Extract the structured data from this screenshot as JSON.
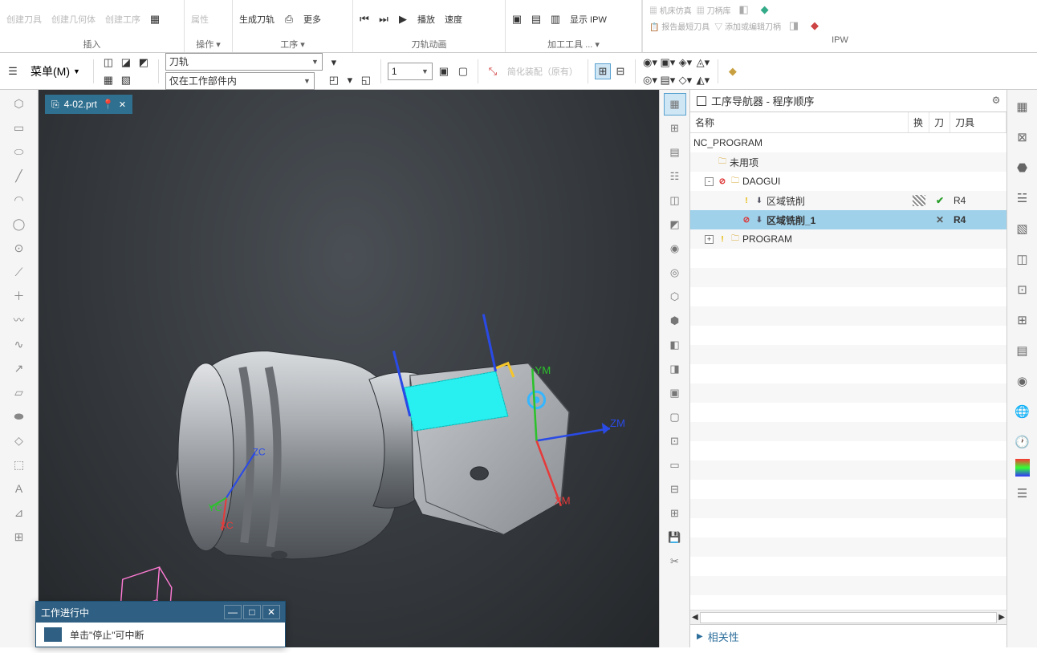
{
  "ribbon": {
    "groups": [
      {
        "label": "插入",
        "items": [
          "创建刀具",
          "创建几何体",
          "创建工序"
        ]
      },
      {
        "label": "操作 ▾",
        "items": [
          "属性"
        ]
      },
      {
        "label": "工序 ▾",
        "items": [
          "生成刀轨",
          "更多"
        ]
      },
      {
        "label": "刀轨动画",
        "items": [
          "播放",
          "速度"
        ]
      },
      {
        "label": "加工工具 ... ▾",
        "items": [
          "显示 IPW"
        ]
      },
      {
        "label": "IPW",
        "items": [
          "机床仿真",
          "刀柄库",
          "报告最短刀具",
          "添加或编辑刀柄"
        ]
      }
    ]
  },
  "toolbar": {
    "menu": "菜单(M)",
    "combo1": "刀轨",
    "combo2": "仅在工作部件内",
    "combo3": "1",
    "assy": "简化装配（原有）"
  },
  "fileTab": {
    "name": "4-02.prt",
    "pin": "📌"
  },
  "navigator": {
    "title": "工序导航器 - 程序顺序",
    "columns": {
      "name": "名称",
      "huan": "换",
      "dao": "刀",
      "tool": "刀具"
    },
    "rows": [
      {
        "level": 0,
        "exp": "",
        "icons": [],
        "label": "NC_PROGRAM",
        "h": "",
        "d": "",
        "t": ""
      },
      {
        "level": 1,
        "exp": "",
        "icons": [
          "folder"
        ],
        "label": "未用项",
        "h": "",
        "d": "",
        "t": ""
      },
      {
        "level": 1,
        "exp": "-",
        "icons": [
          "forbid",
          "folder"
        ],
        "label": "DAOGUI",
        "h": "",
        "d": "",
        "t": ""
      },
      {
        "level": 3,
        "exp": "",
        "icons": [
          "warn",
          "tool"
        ],
        "label": "区域铣削",
        "h": "stripe",
        "d": "check",
        "t": "R4"
      },
      {
        "level": 3,
        "exp": "",
        "icons": [
          "forbid",
          "tool"
        ],
        "label": "区域铣削_1",
        "h": "",
        "d": "xmark",
        "t": "R4",
        "selected": true
      },
      {
        "level": 1,
        "exp": "+",
        "icons": [
          "warn",
          "folder"
        ],
        "label": "PROGRAM",
        "h": "",
        "d": "",
        "t": ""
      }
    ],
    "footer": "相关性"
  },
  "dialog": {
    "title": "工作进行中",
    "body": "单击\"停止\"可中断"
  },
  "viewport": {
    "axis": {
      "xm": "XM",
      "ym": "YM",
      "zm": "ZM",
      "xc": "XC",
      "yc": "YC",
      "zc": "ZC",
      "z": "Z"
    },
    "colors": {
      "bgDark": "#24272a",
      "bgLight": "#4a4f55",
      "partLight": "#c8cbcf",
      "partMid": "#9aa0a6",
      "partDark": "#5a5f65",
      "faceCyan": "#29f0f0",
      "axisX": "#e63a3a",
      "axisY": "#2bc22b",
      "axisZ": "#2a4ae6",
      "wire": "#ff7bd5"
    }
  }
}
